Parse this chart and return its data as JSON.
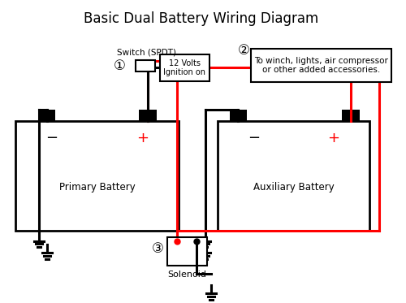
{
  "title": "Basic Dual Battery Wiring Diagram",
  "title_fontsize": 12,
  "bg_color": "#ffffff",
  "battery1_label": "Primary Battery",
  "battery2_label": "Auxiliary Battery",
  "solenoid_label": "Solenoid",
  "switch_label": "Switch (SPDT)",
  "ignition_label": "12 Volts\nIgnition on",
  "accessory_label": "To winch, lights, air compressor\nor other added accessories.",
  "label1": "①",
  "label2": "②",
  "label3": "③",
  "wire_red": "#ff0000",
  "wire_black": "#000000",
  "text_color": "#000000",
  "fig_w": 5.0,
  "fig_h": 3.73,
  "dpi": 100
}
